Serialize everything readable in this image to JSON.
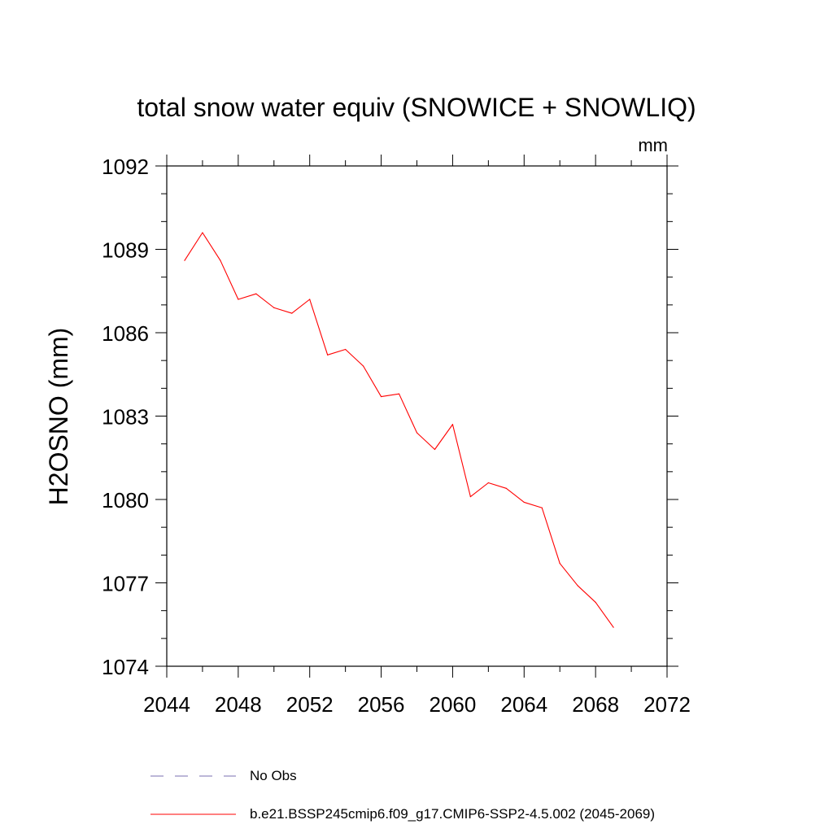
{
  "chart_data": {
    "type": "line",
    "title": "total snow water equiv (SNOWICE + SNOWLIQ)",
    "units_label": "mm",
    "ylabel": "H2OSNO  (mm)",
    "xlabel": "",
    "xlim": [
      2044,
      2072
    ],
    "ylim": [
      1074,
      1092
    ],
    "x_ticks": [
      2044,
      2048,
      2052,
      2056,
      2060,
      2064,
      2068,
      2072
    ],
    "y_ticks": [
      1074,
      1077,
      1080,
      1083,
      1086,
      1089,
      1092
    ],
    "grid": false,
    "legend_placement": "bottom",
    "series": [
      {
        "name": "b.e21.BSSP245cmip6.f09_g17.CMIP6-SSP2-4.5.002 (2045-2069)",
        "color": "#ff0000",
        "style": "solid",
        "x": [
          2045,
          2046,
          2047,
          2048,
          2049,
          2050,
          2051,
          2052,
          2053,
          2054,
          2055,
          2056,
          2057,
          2058,
          2059,
          2060,
          2061,
          2062,
          2063,
          2064,
          2065,
          2066,
          2067,
          2068,
          2069
        ],
        "values": [
          1088.6,
          1089.6,
          1088.6,
          1087.2,
          1087.4,
          1086.9,
          1086.7,
          1087.2,
          1085.2,
          1085.4,
          1084.8,
          1083.7,
          1083.8,
          1082.4,
          1081.8,
          1082.7,
          1080.1,
          1080.6,
          1080.4,
          1079.9,
          1079.7,
          1077.7,
          1076.9,
          1076.3,
          1075.4
        ]
      }
    ],
    "legend": [
      {
        "label": "No Obs",
        "color": "#7a6fb0",
        "style": "dashed"
      },
      {
        "label": "b.e21.BSSP245cmip6.f09_g17.CMIP6-SSP2-4.5.002 (2045-2069)",
        "color": "#ff0000",
        "style": "solid"
      }
    ]
  }
}
